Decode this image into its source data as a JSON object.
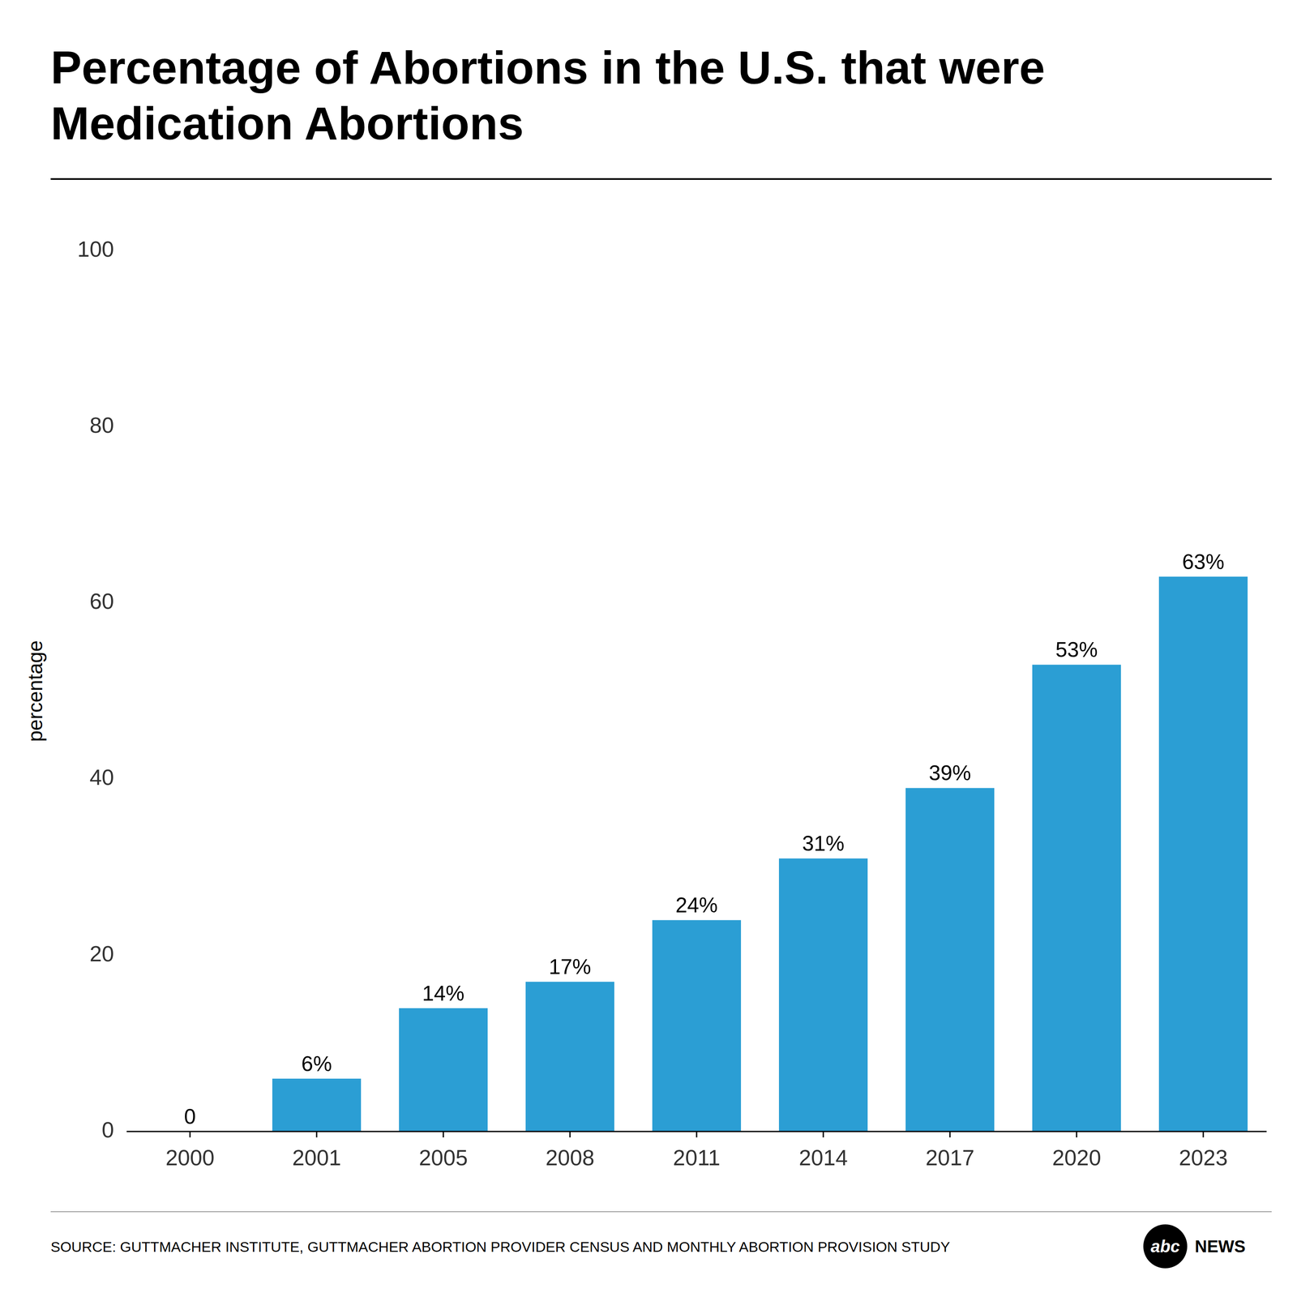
{
  "chart_data": {
    "type": "bar",
    "title": "Percentage of Abortions in the U.S. that were\nMedication Abortions",
    "categories": [
      "2000",
      "2001",
      "2005",
      "2008",
      "2011",
      "2014",
      "2017",
      "2020",
      "2023"
    ],
    "values": [
      0,
      6,
      14,
      17,
      24,
      31,
      39,
      53,
      63
    ],
    "value_labels": [
      "0",
      "6%",
      "14%",
      "17%",
      "24%",
      "31%",
      "39%",
      "53%",
      "63%"
    ],
    "data_labels": true,
    "color": "#2B9ED4",
    "ylabel": "percentage",
    "ylim": [
      0,
      100
    ],
    "yticks": [
      0,
      20,
      40,
      60,
      80,
      100
    ],
    "grid": false,
    "source": "SOURCE: GUTTMACHER INSTITUTE, GUTTMACHER ABORTION PROVIDER CENSUS AND MONTHLY ABORTION PROVISION STUDY",
    "annotations": [
      "abc",
      "NEWS"
    ]
  }
}
